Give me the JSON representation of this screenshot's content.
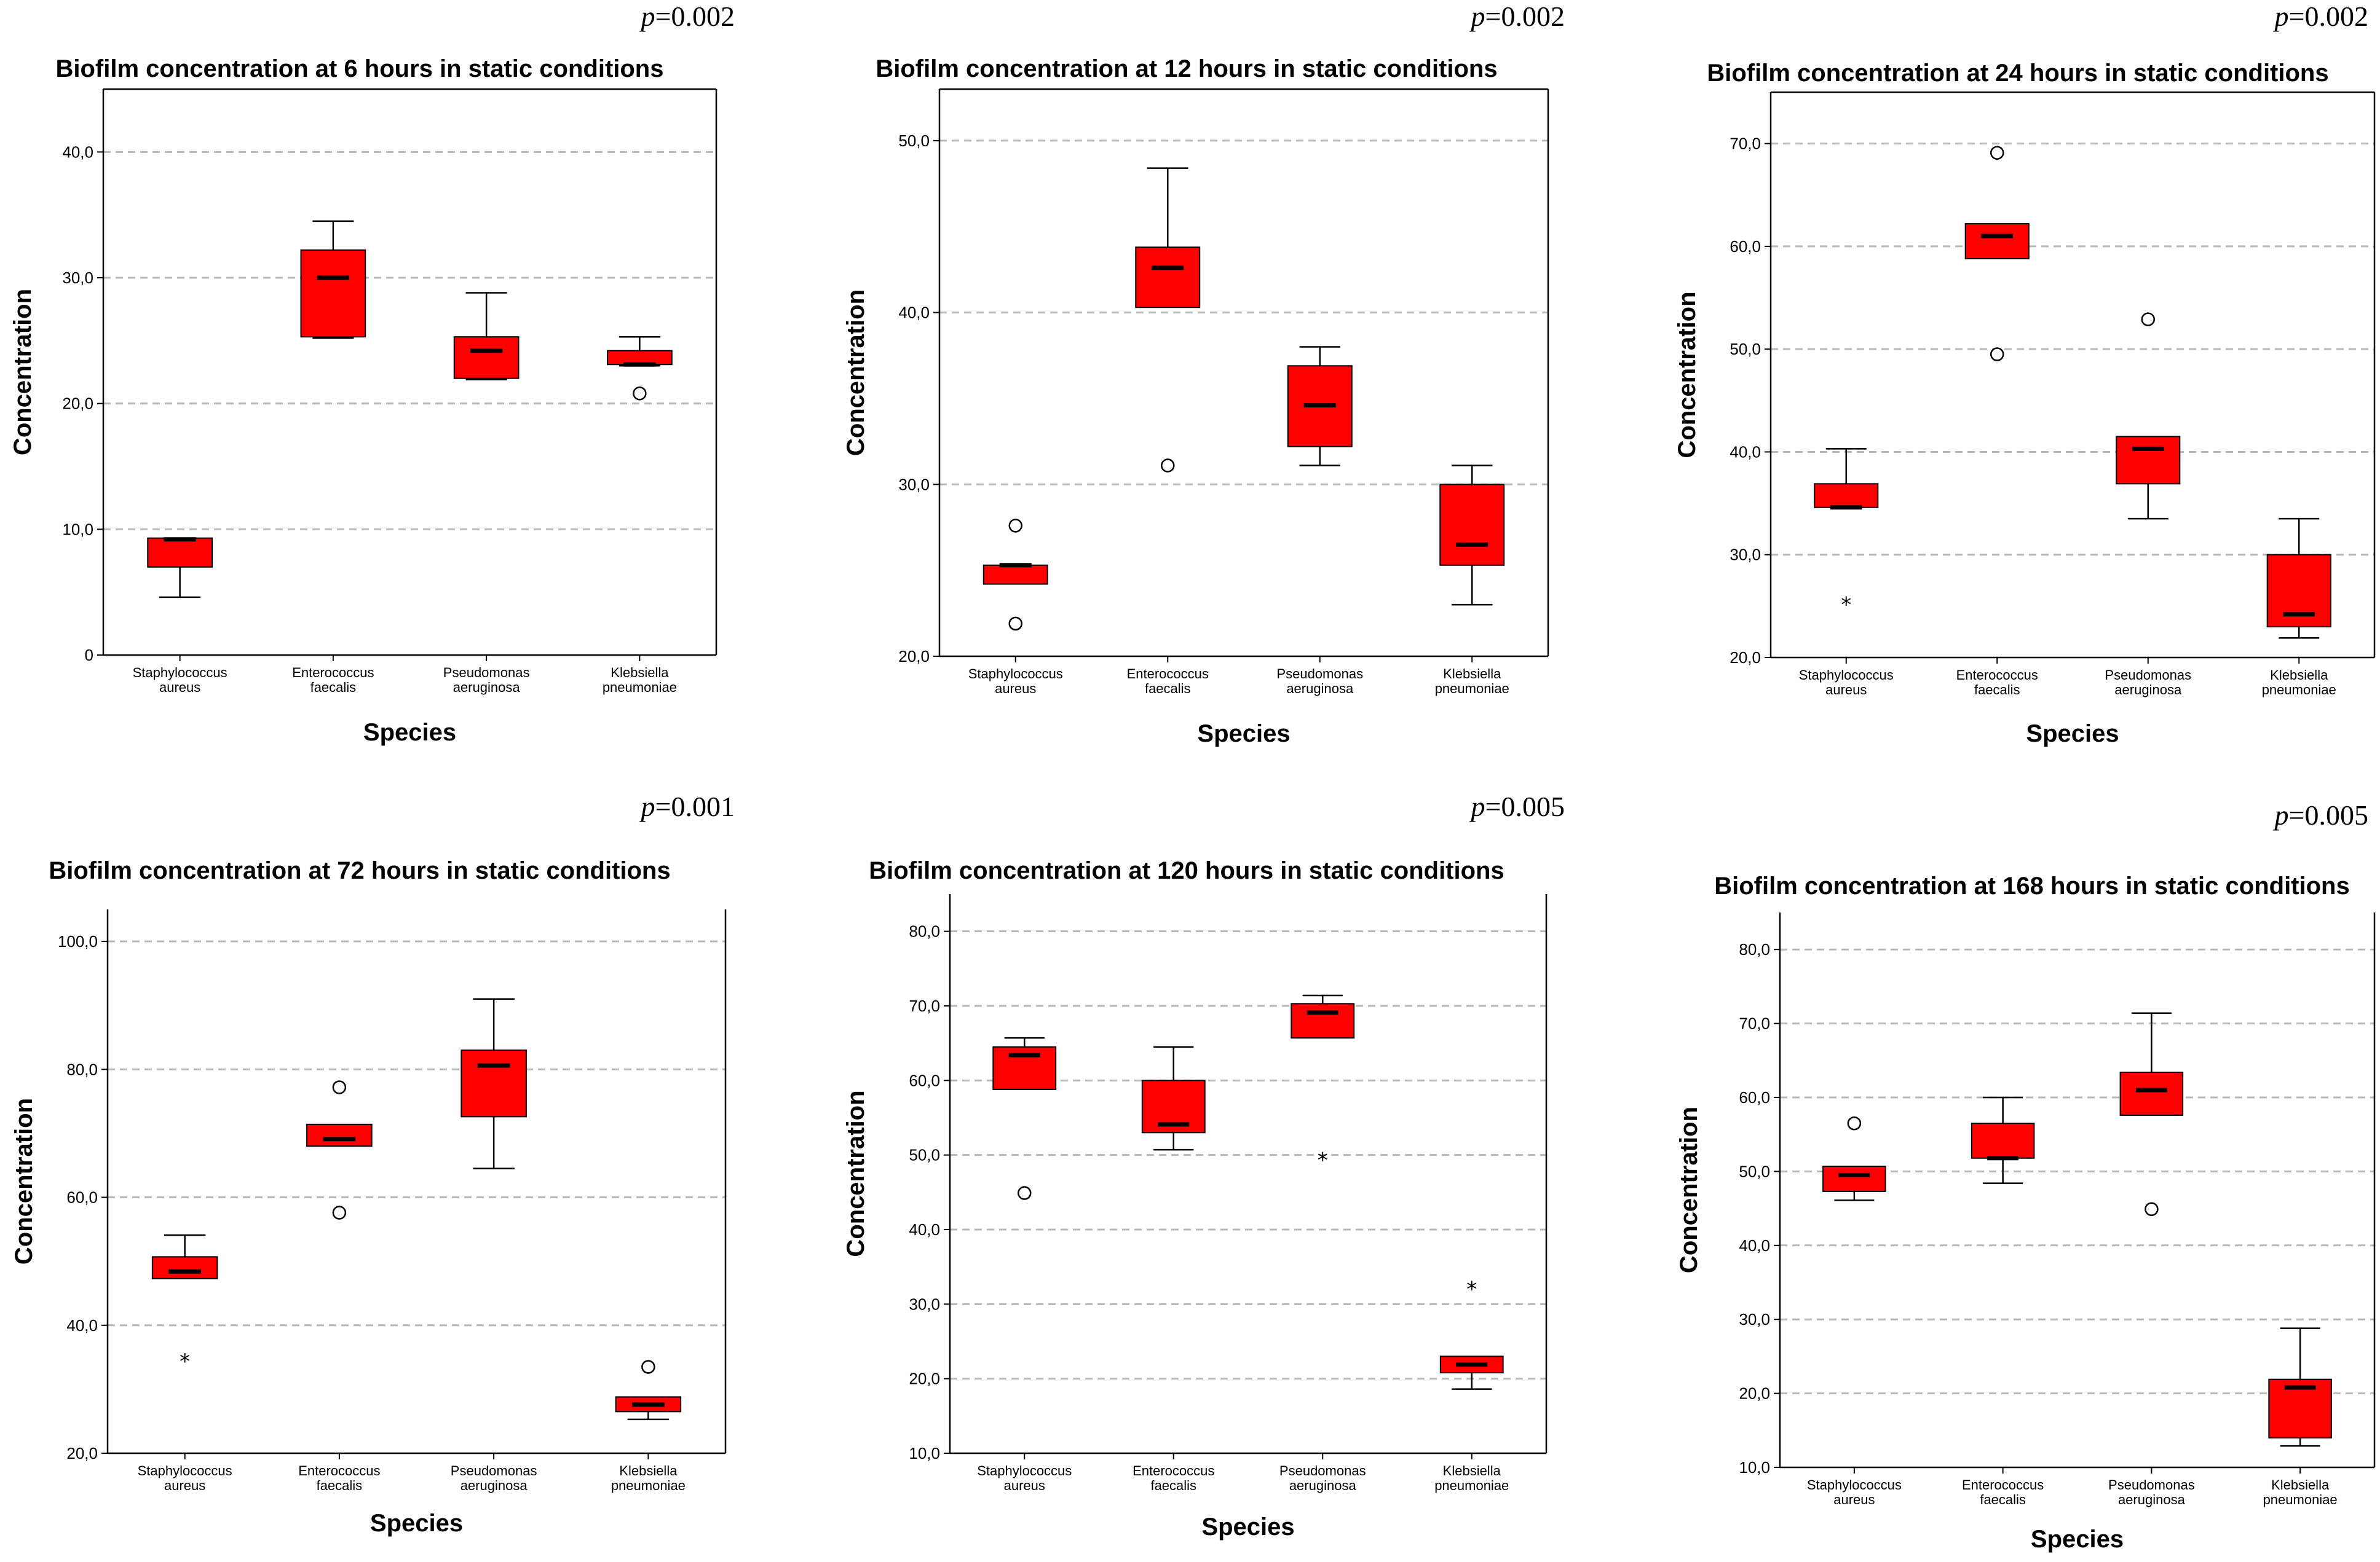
{
  "chart_data": [
    {
      "type": "box",
      "title": "Biofilm concentration at 6 hours in static conditions",
      "p_label": "p",
      "p_value": "=0.002",
      "ylabel": "Concentration",
      "xlabel": "Species",
      "ylim": [
        0,
        45
      ],
      "yticks": [
        "0",
        "10,0",
        "20,0",
        "30,0",
        "40,0"
      ],
      "ytick_values": [
        0,
        10,
        20,
        30,
        40
      ],
      "categories": [
        [
          "Staphylococcus",
          "aureus"
        ],
        [
          "Enterococcus",
          "faecalis"
        ],
        [
          "Pseudomonas",
          "aeruginosa"
        ],
        [
          "Klebsiella",
          "pneumoniae"
        ]
      ],
      "boxes": [
        {
          "min": 4.6,
          "q1": 7.0,
          "median": 9.2,
          "q3": 9.3,
          "max": 9.3,
          "outliers": [],
          "extremes": []
        },
        {
          "min": 25.2,
          "q1": 25.3,
          "median": 30.0,
          "q3": 32.2,
          "max": 34.5,
          "outliers": [],
          "extremes": []
        },
        {
          "min": 21.9,
          "q1": 22.0,
          "median": 24.2,
          "q3": 25.3,
          "max": 28.8,
          "outliers": [],
          "extremes": []
        },
        {
          "min": 23.0,
          "q1": 23.1,
          "median": 23.1,
          "q3": 24.2,
          "max": 25.3,
          "outliers": [
            20.8
          ],
          "extremes": []
        }
      ]
    },
    {
      "type": "box",
      "title": "Biofilm concentration at 12 hours in static conditions",
      "p_label": "p",
      "p_value": "=0.002",
      "ylabel": "Concentration",
      "xlabel": "Species",
      "ylim": [
        20,
        53
      ],
      "yticks": [
        "20,0",
        "30,0",
        "40,0",
        "50,0"
      ],
      "ytick_values": [
        20,
        30,
        40,
        50
      ],
      "categories": [
        [
          "Staphylococcus",
          "aureus"
        ],
        [
          "Enterococcus",
          "faecalis"
        ],
        [
          "Pseudomonas",
          "aeruginosa"
        ],
        [
          "Klebsiella",
          "pneumoniae"
        ]
      ],
      "boxes": [
        {
          "min": 24.2,
          "q1": 24.2,
          "median": 25.3,
          "q3": 25.3,
          "max": 25.3,
          "outliers": [
            27.6,
            21.9
          ],
          "extremes": []
        },
        {
          "min": 40.3,
          "q1": 40.3,
          "median": 42.6,
          "q3": 43.8,
          "max": 48.4,
          "outliers": [
            31.1
          ],
          "extremes": []
        },
        {
          "min": 31.1,
          "q1": 32.2,
          "median": 34.6,
          "q3": 36.9,
          "max": 38.0,
          "outliers": [],
          "extremes": []
        },
        {
          "min": 23.0,
          "q1": 25.3,
          "median": 26.5,
          "q3": 30.0,
          "max": 31.1,
          "outliers": [],
          "extremes": []
        }
      ]
    },
    {
      "type": "box",
      "title": "Biofilm concentration at 24 hours in static conditions",
      "p_label": "p",
      "p_value": "=0.002",
      "ylabel": "Concentration",
      "xlabel": "Species",
      "ylim": [
        20,
        75
      ],
      "yticks": [
        "20,0",
        "30,0",
        "40,0",
        "50,0",
        "60,0",
        "70,0"
      ],
      "ytick_values": [
        20,
        30,
        40,
        50,
        60,
        70
      ],
      "categories": [
        [
          "Staphylococcus",
          "aureus"
        ],
        [
          "Enterococcus",
          "faecalis"
        ],
        [
          "Pseudomonas",
          "aeruginosa"
        ],
        [
          "Klebsiella",
          "pneumoniae"
        ]
      ],
      "boxes": [
        {
          "min": 34.6,
          "q1": 34.6,
          "median": 34.6,
          "q3": 36.9,
          "max": 40.3,
          "outliers": [],
          "extremes": [
            25.3
          ]
        },
        {
          "min": 58.8,
          "q1": 58.8,
          "median": 61.0,
          "q3": 62.2,
          "max": 62.2,
          "outliers": [
            69.1,
            49.5
          ],
          "extremes": []
        },
        {
          "min": 33.5,
          "q1": 36.9,
          "median": 40.3,
          "q3": 41.5,
          "max": 41.5,
          "outliers": [
            52.9
          ],
          "extremes": []
        },
        {
          "min": 21.9,
          "q1": 23.0,
          "median": 24.2,
          "q3": 30.0,
          "max": 33.5,
          "outliers": [],
          "extremes": []
        }
      ]
    },
    {
      "type": "box",
      "title": "Biofilm concentration at 72 hours in static conditions",
      "p_label": "p",
      "p_value": "=0.001",
      "ylabel": "Concentration",
      "xlabel": "Species",
      "ylim": [
        20,
        105
      ],
      "yticks": [
        "20,0",
        "40,0",
        "60,0",
        "80,0",
        "100,0"
      ],
      "ytick_values": [
        20,
        40,
        60,
        80,
        100
      ],
      "categories": [
        [
          "Staphylococcus",
          "aureus"
        ],
        [
          "Enterococcus",
          "faecalis"
        ],
        [
          "Pseudomonas",
          "aeruginosa"
        ],
        [
          "Klebsiella",
          "pneumoniae"
        ]
      ],
      "boxes": [
        {
          "min": 47.3,
          "q1": 47.3,
          "median": 48.4,
          "q3": 50.7,
          "max": 54.1,
          "outliers": [],
          "extremes": [
            34.6
          ]
        },
        {
          "min": 68.0,
          "q1": 68.0,
          "median": 69.1,
          "q3": 71.4,
          "max": 71.4,
          "outliers": [
            77.2,
            57.6
          ],
          "extremes": []
        },
        {
          "min": 64.5,
          "q1": 72.6,
          "median": 80.6,
          "q3": 83.0,
          "max": 91.0,
          "outliers": [],
          "extremes": []
        },
        {
          "min": 25.3,
          "q1": 26.5,
          "median": 27.6,
          "q3": 28.8,
          "max": 28.8,
          "outliers": [
            33.5
          ],
          "extremes": []
        }
      ]
    },
    {
      "type": "box",
      "title": "Biofilm concentration at 120 hours in static conditions",
      "p_label": "p",
      "p_value": "=0.005",
      "ylabel": "Concentration",
      "xlabel": "Species",
      "ylim": [
        10,
        85
      ],
      "yticks": [
        "10,0",
        "20,0",
        "30,0",
        "40,0",
        "50,0",
        "60,0",
        "70,0",
        "80,0"
      ],
      "ytick_values": [
        10,
        20,
        30,
        40,
        50,
        60,
        70,
        80
      ],
      "categories": [
        [
          "Staphylococcus",
          "aureus"
        ],
        [
          "Enterococcus",
          "faecalis"
        ],
        [
          "Pseudomonas",
          "aeruginosa"
        ],
        [
          "Klebsiella",
          "pneumoniae"
        ]
      ],
      "boxes": [
        {
          "min": 58.8,
          "q1": 58.8,
          "median": 63.4,
          "q3": 64.5,
          "max": 65.7,
          "outliers": [
            44.9
          ],
          "extremes": []
        },
        {
          "min": 50.7,
          "q1": 53.0,
          "median": 54.1,
          "q3": 60.0,
          "max": 64.5,
          "outliers": [],
          "extremes": []
        },
        {
          "min": 65.7,
          "q1": 65.7,
          "median": 69.1,
          "q3": 70.3,
          "max": 71.4,
          "outliers": [],
          "extremes": [
            49.5
          ]
        },
        {
          "min": 18.6,
          "q1": 20.8,
          "median": 21.9,
          "q3": 23.0,
          "max": 23.0,
          "outliers": [],
          "extremes": [
            32.2
          ]
        }
      ]
    },
    {
      "type": "box",
      "title": "Biofilm concentration at 168 hours in static conditions",
      "p_label": "p",
      "p_value": "=0.005",
      "ylabel": "Concentration",
      "xlabel": "Species",
      "ylim": [
        10,
        85
      ],
      "yticks": [
        "10,0",
        "20,0",
        "30,0",
        "40,0",
        "50,0",
        "60,0",
        "70,0",
        "80,0"
      ],
      "ytick_values": [
        10,
        20,
        30,
        40,
        50,
        60,
        70,
        80
      ],
      "categories": [
        [
          "Staphylococcus",
          "aureus"
        ],
        [
          "Enterococcus",
          "faecalis"
        ],
        [
          "Pseudomonas",
          "aeruginosa"
        ],
        [
          "Klebsiella",
          "pneumoniae"
        ]
      ],
      "boxes": [
        {
          "min": 46.1,
          "q1": 47.3,
          "median": 49.5,
          "q3": 50.7,
          "max": 50.7,
          "outliers": [
            56.5
          ],
          "extremes": []
        },
        {
          "min": 48.4,
          "q1": 51.8,
          "median": 51.8,
          "q3": 56.5,
          "max": 60.0,
          "outliers": [],
          "extremes": []
        },
        {
          "min": 57.6,
          "q1": 57.6,
          "median": 61.0,
          "q3": 63.4,
          "max": 71.4,
          "outliers": [
            44.9
          ],
          "extremes": []
        },
        {
          "min": 12.9,
          "q1": 14.0,
          "median": 20.8,
          "q3": 21.9,
          "max": 28.8,
          "outliers": [],
          "extremes": []
        }
      ]
    }
  ]
}
